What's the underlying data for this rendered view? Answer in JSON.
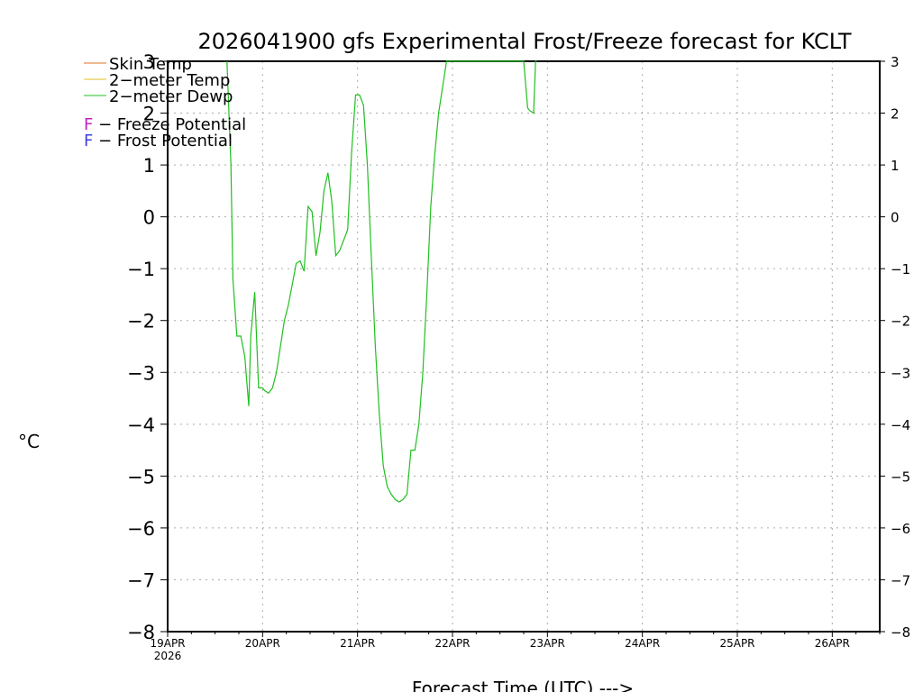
{
  "chart_data": {
    "type": "line",
    "title": "2026041900 gfs Experimental Frost/Freeze forecast for KCLT",
    "xlabel": "Forecast Time (UTC) --->",
    "ylabel": "°C",
    "ylim": [
      -8,
      3
    ],
    "xlim_hours": [
      0,
      180
    ],
    "yticks": [
      -8,
      -7,
      -6,
      -5,
      -4,
      -3,
      -2,
      -1,
      0,
      1,
      2,
      3
    ],
    "ytick_labels": [
      "−8",
      "−7",
      "−6",
      "−5",
      "−4",
      "−3",
      "−2",
      "−1",
      "0",
      "1",
      "2",
      "3"
    ],
    "xticks": [
      {
        "hour": 0,
        "label": "19APR",
        "sublabel": "2026"
      },
      {
        "hour": 24,
        "label": "20APR"
      },
      {
        "hour": 48,
        "label": "21APR"
      },
      {
        "hour": 72,
        "label": "22APR"
      },
      {
        "hour": 96,
        "label": "23APR"
      },
      {
        "hour": 120,
        "label": "24APR"
      },
      {
        "hour": 144,
        "label": "25APR"
      },
      {
        "hour": 168,
        "label": "26APR"
      }
    ],
    "grid": true,
    "legend": [
      {
        "name": "Skin Temp",
        "color": "#e07020"
      },
      {
        "name": "2-meter Temp",
        "color": "#e0c020"
      },
      {
        "name": "2-meter Dewp",
        "color": "#20c020"
      }
    ],
    "legend_display": [
      "Skin Temp",
      "2−meter Temp",
      "2−meter Dewp"
    ],
    "potential_legend": [
      {
        "letter": "F",
        "text": " − Freeze Potential",
        "color": "#c020c0"
      },
      {
        "letter": "F",
        "text": " − Frost Potential",
        "color": "#4040e0"
      }
    ],
    "series": [
      {
        "name": "2-meter Dewp",
        "color": "#20c020",
        "x": [
          15,
          16,
          16.5,
          17.5,
          18.5,
          19.5,
          20.5,
          21,
          22,
          23,
          24,
          24.5,
          25.5,
          26.5,
          27.5,
          28.5,
          29.5,
          30.5,
          31.5,
          32.5,
          33.5,
          34.5,
          35.5,
          36.5,
          37.5,
          38.5,
          39.5,
          40.5,
          41.5,
          42.5,
          43.5,
          44.5,
          45.5,
          46.5,
          47.5,
          48.5,
          49.5,
          50.5,
          51.5,
          52.5,
          53.5,
          54.5,
          55.5,
          56.5,
          57.5,
          58.5,
          59.5,
          60.5,
          61.5,
          62.5,
          63.5,
          64.5,
          65.5,
          66.5,
          67.5,
          68.5,
          69.5,
          70.5,
          71.5,
          72.5,
          90,
          91,
          91.5,
          92.5,
          93,
          93.3
        ],
        "values": [
          3.0,
          1.0,
          -1.2,
          -2.3,
          -2.3,
          -2.7,
          -3.65,
          -2.3,
          -1.45,
          -3.3,
          -3.3,
          -3.35,
          -3.4,
          -3.3,
          -3.0,
          -2.5,
          -2.0,
          -1.7,
          -1.3,
          -0.9,
          -0.85,
          -1.05,
          0.2,
          0.1,
          -0.75,
          -0.3,
          0.5,
          0.85,
          0.3,
          -0.75,
          -0.65,
          -0.45,
          -0.25,
          1.25,
          2.35,
          2.35,
          2.15,
          1.0,
          -0.8,
          -2.5,
          -3.8,
          -4.8,
          -5.2,
          -5.35,
          -5.45,
          -5.5,
          -5.45,
          -5.35,
          -4.5,
          -4.5,
          -4.0,
          -3.0,
          -1.5,
          0.2,
          1.2,
          2.0,
          2.5,
          3.0,
          3.0,
          3.0,
          3.0,
          2.1,
          2.05,
          2.0,
          3.0,
          3.0
        ]
      }
    ]
  }
}
